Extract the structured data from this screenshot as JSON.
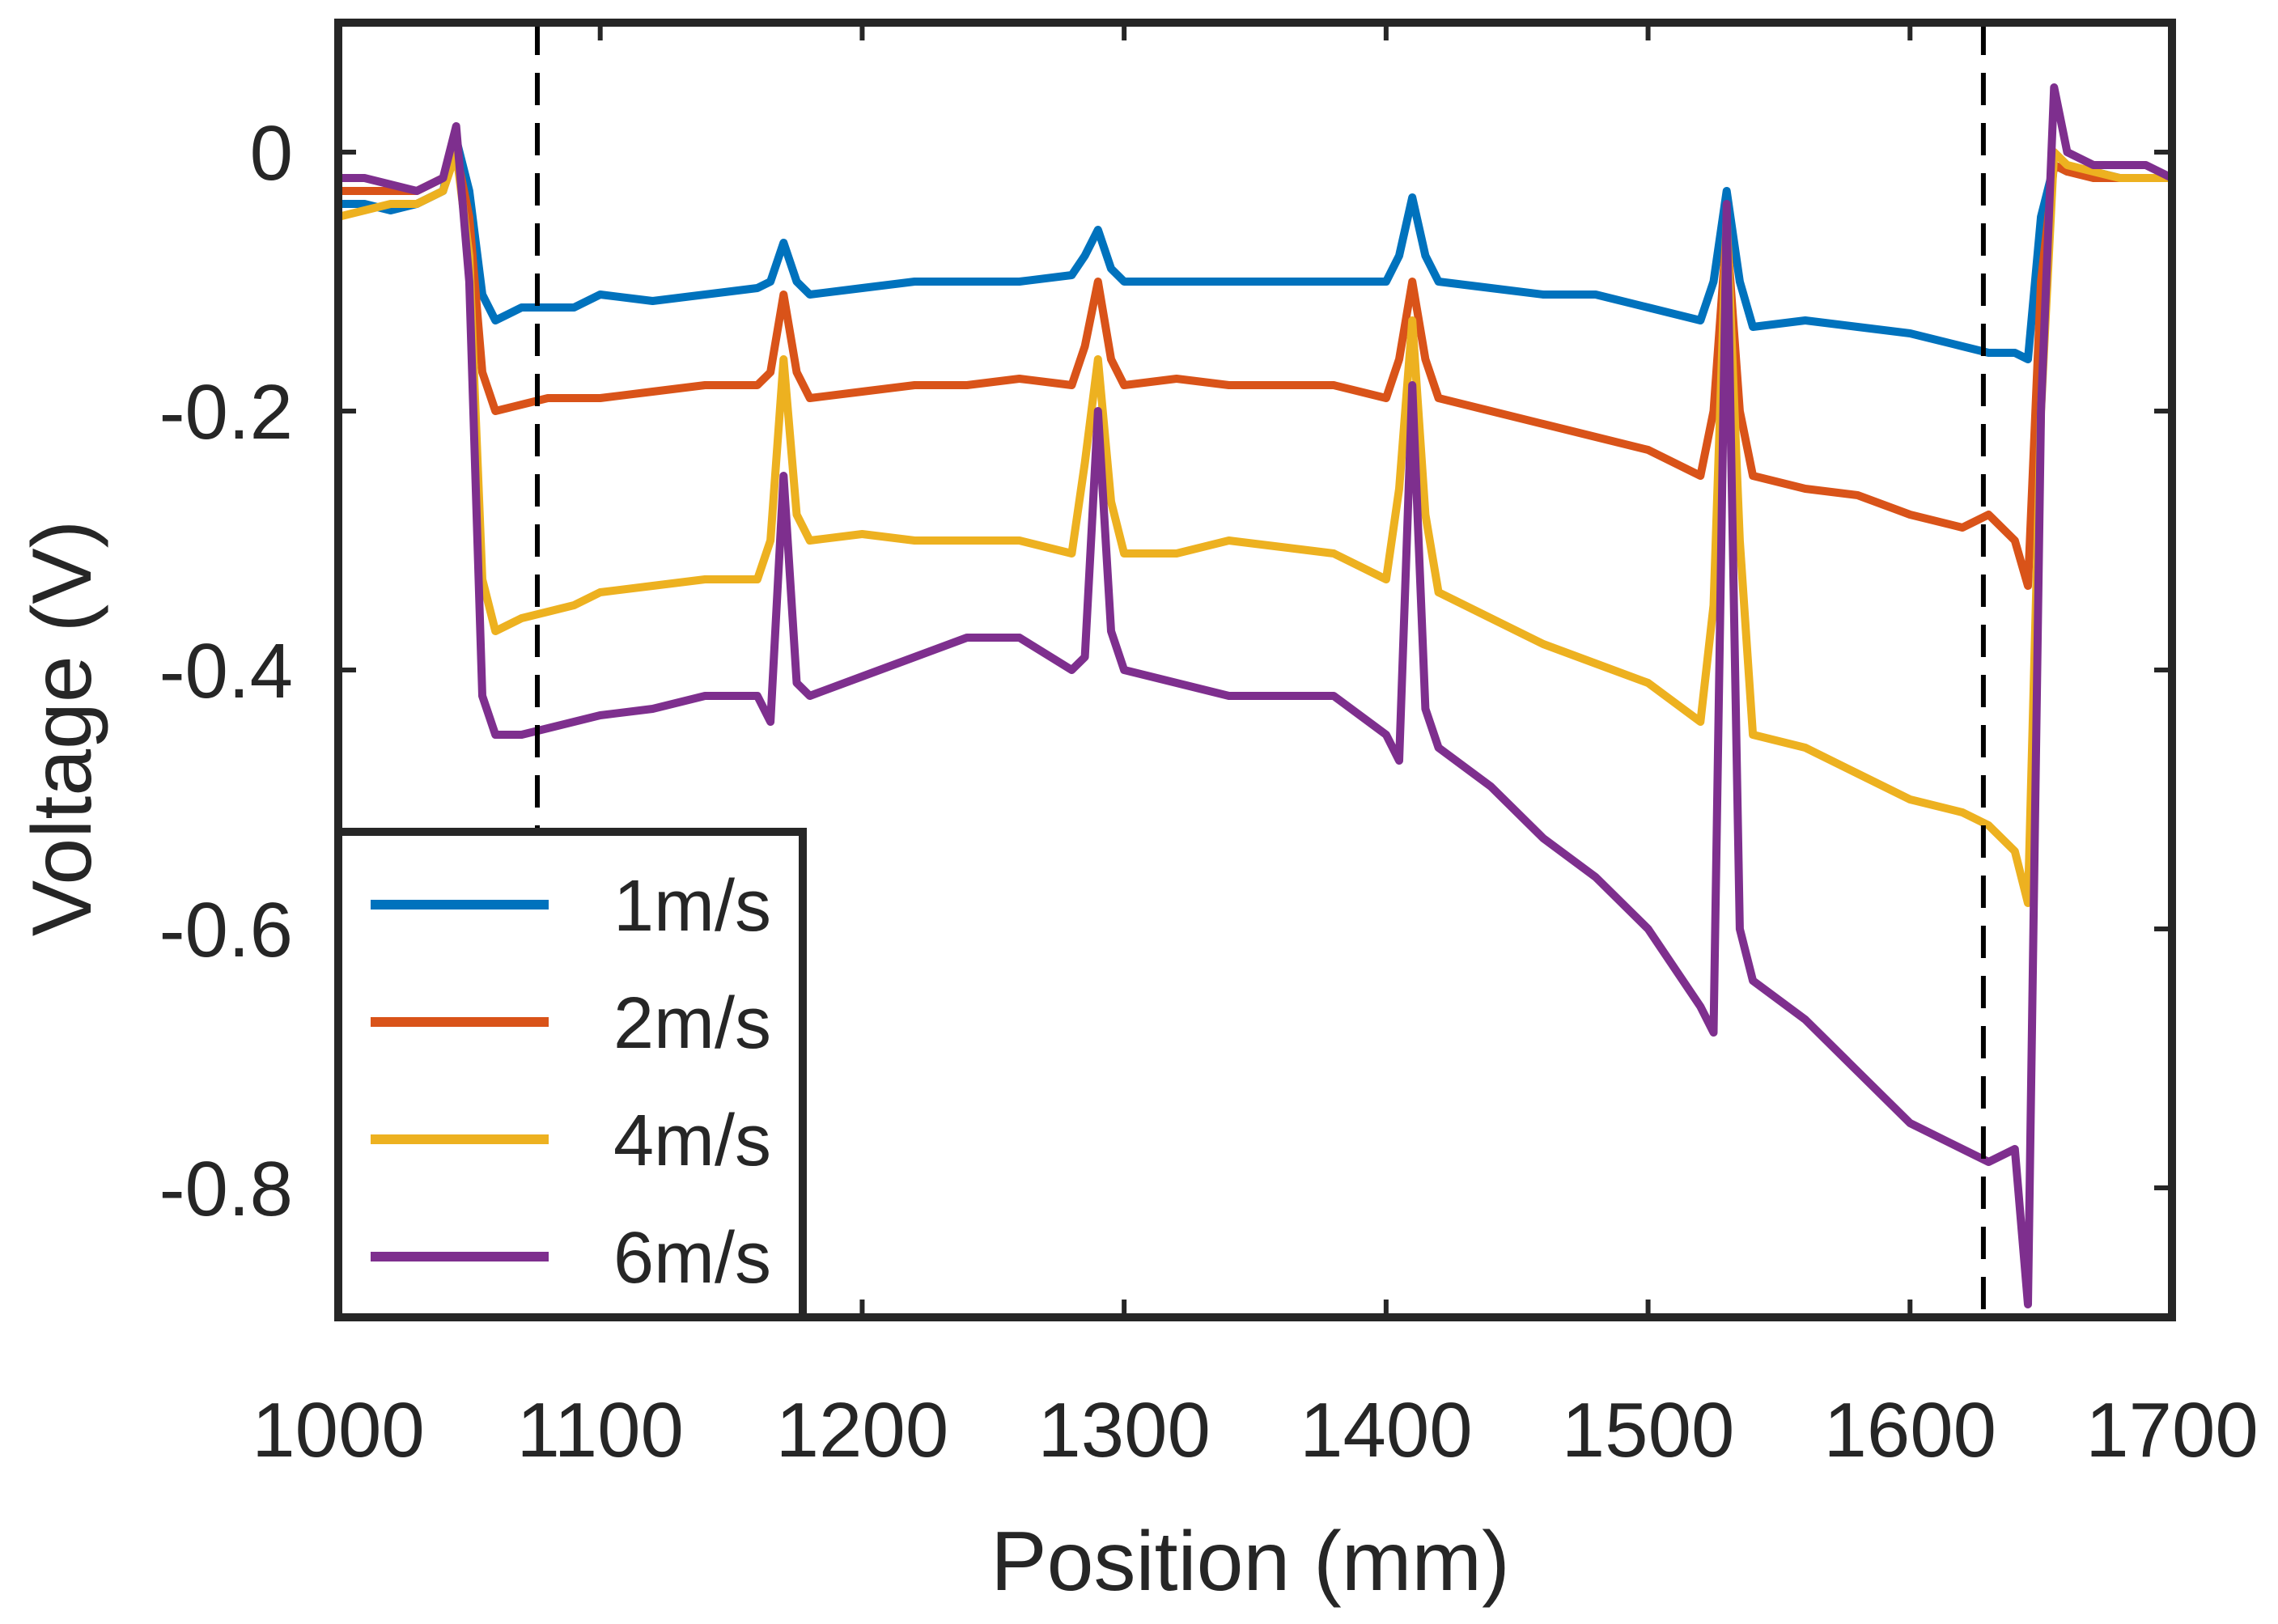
{
  "chart_data": {
    "type": "line",
    "title": "",
    "xlabel": "Position (mm)",
    "ylabel": "Voltage (V)",
    "xlim": [
      1000,
      1700
    ],
    "ylim": [
      -0.9,
      0.1
    ],
    "xticks": [
      1000,
      1100,
      1200,
      1300,
      1400,
      1500,
      1600,
      1700
    ],
    "xtick_labels": [
      "1000",
      "1100",
      "1200",
      "1300",
      "1400",
      "1500",
      "1600",
      "1700"
    ],
    "yticks": [
      0,
      -0.2,
      -0.4,
      -0.6,
      -0.8
    ],
    "ytick_labels": [
      "0",
      "-0.2",
      "-0.4",
      "-0.6",
      "-0.8"
    ],
    "grid": false,
    "legend_position": "bottom-left",
    "reference_lines": [
      {
        "x": 1076,
        "style": "dashed",
        "color": "#000000"
      },
      {
        "x": 1628,
        "style": "dashed",
        "color": "#000000"
      }
    ],
    "series": [
      {
        "name": "1m/s",
        "color": "#0072BD",
        "x": [
          1000,
          1010,
          1020,
          1030,
          1040,
          1045,
          1050,
          1055,
          1060,
          1070,
          1080,
          1090,
          1100,
          1120,
          1140,
          1160,
          1165,
          1170,
          1175,
          1180,
          1200,
          1220,
          1240,
          1260,
          1280,
          1285,
          1290,
          1295,
          1300,
          1320,
          1340,
          1360,
          1380,
          1400,
          1405,
          1410,
          1415,
          1420,
          1440,
          1460,
          1480,
          1500,
          1520,
          1525,
          1530,
          1535,
          1540,
          1560,
          1580,
          1600,
          1620,
          1630,
          1640,
          1645,
          1650,
          1655,
          1660,
          1670,
          1680,
          1690,
          1700
        ],
        "values": [
          -0.04,
          -0.04,
          -0.045,
          -0.04,
          -0.03,
          0.01,
          -0.03,
          -0.11,
          -0.13,
          -0.12,
          -0.12,
          -0.12,
          -0.11,
          -0.115,
          -0.11,
          -0.105,
          -0.1,
          -0.07,
          -0.1,
          -0.11,
          -0.105,
          -0.1,
          -0.1,
          -0.1,
          -0.095,
          -0.08,
          -0.06,
          -0.09,
          -0.1,
          -0.1,
          -0.1,
          -0.1,
          -0.1,
          -0.1,
          -0.08,
          -0.035,
          -0.08,
          -0.1,
          -0.105,
          -0.11,
          -0.11,
          -0.12,
          -0.13,
          -0.1,
          -0.03,
          -0.1,
          -0.135,
          -0.13,
          -0.135,
          -0.14,
          -0.15,
          -0.155,
          -0.155,
          -0.16,
          -0.05,
          -0.01,
          -0.015,
          -0.015,
          -0.02,
          -0.02,
          -0.02
        ]
      },
      {
        "name": "2m/s",
        "color": "#D95319",
        "x": [
          1000,
          1010,
          1020,
          1030,
          1040,
          1045,
          1050,
          1055,
          1060,
          1070,
          1080,
          1090,
          1100,
          1120,
          1140,
          1160,
          1165,
          1170,
          1175,
          1180,
          1200,
          1220,
          1240,
          1260,
          1280,
          1285,
          1290,
          1295,
          1300,
          1320,
          1340,
          1360,
          1380,
          1400,
          1405,
          1410,
          1415,
          1420,
          1440,
          1460,
          1480,
          1500,
          1520,
          1525,
          1530,
          1535,
          1540,
          1560,
          1580,
          1600,
          1620,
          1630,
          1640,
          1645,
          1650,
          1655,
          1660,
          1670,
          1680,
          1690,
          1700
        ],
        "values": [
          -0.03,
          -0.03,
          -0.03,
          -0.03,
          -0.02,
          0.0,
          -0.05,
          -0.17,
          -0.2,
          -0.195,
          -0.19,
          -0.19,
          -0.19,
          -0.185,
          -0.18,
          -0.18,
          -0.17,
          -0.11,
          -0.17,
          -0.19,
          -0.185,
          -0.18,
          -0.18,
          -0.175,
          -0.18,
          -0.15,
          -0.1,
          -0.16,
          -0.18,
          -0.175,
          -0.18,
          -0.18,
          -0.18,
          -0.19,
          -0.16,
          -0.1,
          -0.16,
          -0.19,
          -0.2,
          -0.21,
          -0.22,
          -0.23,
          -0.25,
          -0.2,
          -0.06,
          -0.2,
          -0.25,
          -0.26,
          -0.265,
          -0.28,
          -0.29,
          -0.28,
          -0.3,
          -0.335,
          -0.1,
          -0.01,
          -0.015,
          -0.02,
          -0.02,
          -0.02,
          -0.02
        ]
      },
      {
        "name": "4m/s",
        "color": "#EDB120",
        "x": [
          1000,
          1010,
          1020,
          1030,
          1040,
          1045,
          1050,
          1055,
          1060,
          1070,
          1080,
          1090,
          1100,
          1120,
          1140,
          1160,
          1165,
          1170,
          1175,
          1180,
          1200,
          1220,
          1240,
          1260,
          1280,
          1285,
          1290,
          1295,
          1300,
          1320,
          1340,
          1360,
          1380,
          1400,
          1405,
          1410,
          1415,
          1420,
          1440,
          1460,
          1480,
          1500,
          1520,
          1525,
          1530,
          1535,
          1540,
          1560,
          1580,
          1600,
          1620,
          1630,
          1640,
          1645,
          1650,
          1655,
          1660,
          1670,
          1680,
          1690,
          1700
        ],
        "values": [
          -0.05,
          -0.045,
          -0.04,
          -0.04,
          -0.03,
          0.0,
          -0.08,
          -0.33,
          -0.37,
          -0.36,
          -0.355,
          -0.35,
          -0.34,
          -0.335,
          -0.33,
          -0.33,
          -0.3,
          -0.16,
          -0.28,
          -0.3,
          -0.295,
          -0.3,
          -0.3,
          -0.3,
          -0.31,
          -0.24,
          -0.16,
          -0.27,
          -0.31,
          -0.31,
          -0.3,
          -0.305,
          -0.31,
          -0.33,
          -0.26,
          -0.13,
          -0.28,
          -0.34,
          -0.36,
          -0.38,
          -0.395,
          -0.41,
          -0.44,
          -0.35,
          -0.05,
          -0.3,
          -0.45,
          -0.46,
          -0.48,
          -0.5,
          -0.51,
          -0.52,
          -0.54,
          -0.58,
          -0.2,
          0.0,
          -0.01,
          -0.015,
          -0.02,
          -0.02,
          -0.02
        ]
      },
      {
        "name": "6m/s",
        "color": "#7E2F8E",
        "x": [
          1000,
          1010,
          1020,
          1030,
          1040,
          1045,
          1050,
          1055,
          1060,
          1070,
          1080,
          1090,
          1100,
          1120,
          1140,
          1160,
          1165,
          1170,
          1175,
          1180,
          1200,
          1220,
          1240,
          1260,
          1280,
          1285,
          1290,
          1295,
          1300,
          1320,
          1340,
          1360,
          1380,
          1400,
          1405,
          1410,
          1415,
          1420,
          1440,
          1460,
          1480,
          1500,
          1520,
          1525,
          1530,
          1535,
          1540,
          1560,
          1580,
          1600,
          1620,
          1630,
          1640,
          1645,
          1650,
          1655,
          1660,
          1670,
          1680,
          1690,
          1700
        ],
        "values": [
          -0.02,
          -0.02,
          -0.025,
          -0.03,
          -0.02,
          0.02,
          -0.1,
          -0.42,
          -0.45,
          -0.45,
          -0.445,
          -0.44,
          -0.435,
          -0.43,
          -0.42,
          -0.42,
          -0.44,
          -0.25,
          -0.41,
          -0.42,
          -0.405,
          -0.39,
          -0.375,
          -0.375,
          -0.4,
          -0.39,
          -0.2,
          -0.37,
          -0.4,
          -0.41,
          -0.42,
          -0.42,
          -0.42,
          -0.45,
          -0.47,
          -0.18,
          -0.43,
          -0.46,
          -0.49,
          -0.53,
          -0.56,
          -0.6,
          -0.66,
          -0.68,
          -0.04,
          -0.6,
          -0.64,
          -0.67,
          -0.71,
          -0.75,
          -0.77,
          -0.78,
          -0.77,
          -0.89,
          -0.2,
          0.05,
          0.0,
          -0.01,
          -0.01,
          -0.01,
          -0.02
        ]
      }
    ]
  }
}
